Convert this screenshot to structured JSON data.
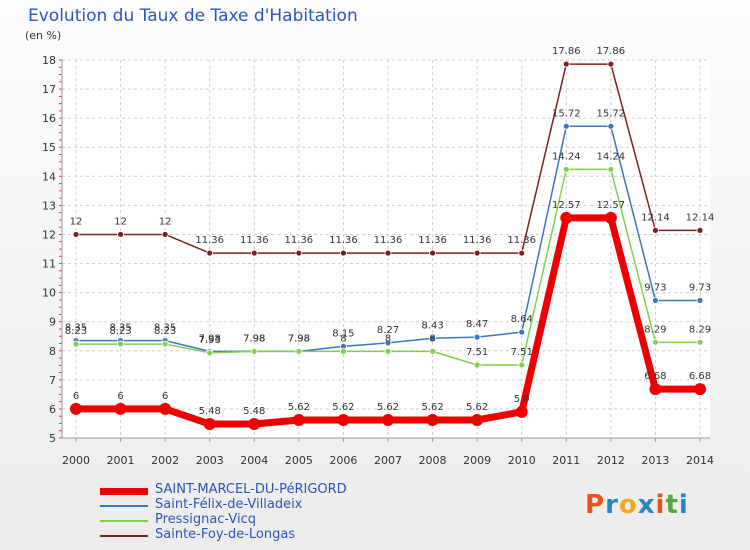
{
  "title": "Evolution du Taux de Taxe d'Habitation",
  "unit_label": "(en %)",
  "logo": {
    "text": "Proxiti",
    "colors": [
      "#e8531e",
      "#2b84c6",
      "#f4a81d",
      "#2b84c6",
      "#e8531e",
      "#55a83b",
      "#2b84c6"
    ]
  },
  "colors": {
    "grid": "#cfcfcf",
    "axis": "#999999",
    "ticks": "#d94343",
    "label": "#333333",
    "legend_text": "#2b55b8"
  },
  "chart_data": {
    "type": "line",
    "x": [
      "2000",
      "2001",
      "2002",
      "2003",
      "2004",
      "2005",
      "2006",
      "2007",
      "2008",
      "2009",
      "2010",
      "2011",
      "2012",
      "2013",
      "2014"
    ],
    "ylim": [
      5,
      18
    ],
    "yticks": [
      5,
      6,
      7,
      8,
      9,
      10,
      11,
      12,
      13,
      14,
      15,
      16,
      17,
      18
    ],
    "grid": true,
    "legend_position": "bottom-left",
    "series": [
      {
        "name": "Sainte-Foy-de-Longas",
        "color": "#7a2020",
        "width": 1.5,
        "values": [
          12,
          12,
          12,
          11.36,
          11.36,
          11.36,
          11.36,
          11.36,
          11.36,
          11.36,
          11.36,
          17.86,
          17.86,
          12.14,
          12.14
        ],
        "labels": [
          "12",
          "12",
          "12",
          "11.36",
          "11.36",
          "11.36",
          "11.36",
          "11.36",
          "11.36",
          "11.36",
          "11.36",
          "17.86",
          "17.86",
          "12.14",
          "12.14"
        ]
      },
      {
        "name": "Saint-Félix-de-Villadeix",
        "color": "#3a78b8",
        "width": 1.5,
        "values": [
          8.35,
          8.35,
          8.35,
          7.98,
          7.98,
          7.98,
          8.15,
          8.27,
          8.43,
          8.47,
          8.64,
          15.72,
          15.72,
          9.73,
          9.73
        ],
        "labels": [
          "8.35",
          "8.35",
          "8.35",
          "7.98",
          "7.98",
          "7.98",
          "8.15",
          "8.27",
          "8.43",
          "8.47",
          "8.64",
          "15.72",
          "15.72",
          "9.73",
          "9.73"
        ]
      },
      {
        "name": "Pressignac-Vicq",
        "color": "#7fd04b",
        "width": 1.5,
        "values": [
          8.23,
          8.23,
          8.23,
          7.93,
          7.98,
          7.98,
          7.98,
          7.98,
          7.98,
          7.51,
          7.51,
          14.24,
          14.24,
          8.29,
          8.29
        ],
        "labels": [
          "8.23",
          "8.23",
          "8.23",
          "7.93",
          "7.98",
          "7.98",
          "8",
          "8",
          "8",
          "7.51",
          "7.51",
          "14.24",
          "14.24",
          "8.29",
          "8.29"
        ]
      },
      {
        "name": "SAINT-MARCEL-DU-PéRIGORD",
        "color": "#ee0000",
        "width": 7,
        "values": [
          6,
          6,
          6,
          5.48,
          5.48,
          5.62,
          5.62,
          5.62,
          5.62,
          5.62,
          5.9,
          12.57,
          12.57,
          6.68,
          6.68
        ],
        "labels": [
          "6",
          "6",
          "6",
          "5.48",
          "5.48",
          "5.62",
          "5.62",
          "5.62",
          "5.62",
          "5.62",
          "5.9",
          "12.57",
          "12.57",
          "6.68",
          "6.68"
        ]
      }
    ]
  },
  "legend": [
    {
      "label": "SAINT-MARCEL-DU-PéRIGORD",
      "color": "#ee0000",
      "width": 7
    },
    {
      "label": "Saint-Félix-de-Villadeix",
      "color": "#3a78b8",
      "width": 1.5
    },
    {
      "label": "Pressignac-Vicq",
      "color": "#7fd04b",
      "width": 1.5
    },
    {
      "label": "Sainte-Foy-de-Longas",
      "color": "#7a2020",
      "width": 1.5
    }
  ]
}
